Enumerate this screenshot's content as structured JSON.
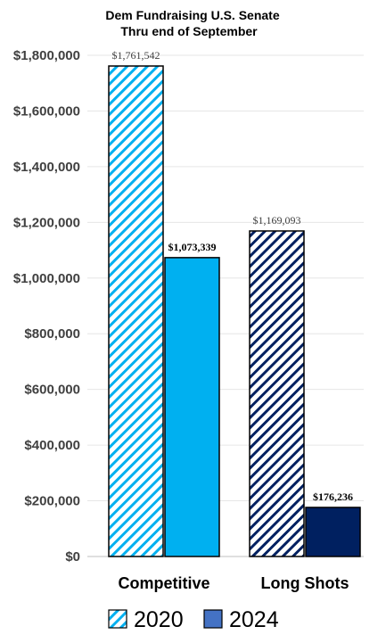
{
  "chart_data": {
    "type": "bar",
    "title": "Dem Fundraising U.S. Senate",
    "subtitle": "Thru end of September",
    "categories": [
      "Competitive",
      "Long Shots"
    ],
    "series": [
      {
        "name": "2020",
        "values": [
          1761542,
          1169093
        ],
        "labels": [
          "$1,761,542",
          "$1,169,093"
        ],
        "colors": [
          "#00b0f0",
          "#002060"
        ],
        "fill": "hatched"
      },
      {
        "name": "2024",
        "values": [
          1073339,
          176236
        ],
        "labels": [
          "$1,073,339",
          "$176,236"
        ],
        "colors": [
          "#00b0f0",
          "#002060"
        ],
        "fill": "solid"
      }
    ],
    "ylim": [
      0,
      1800000
    ],
    "yticks": [
      0,
      200000,
      400000,
      600000,
      800000,
      1000000,
      1200000,
      1400000,
      1600000,
      1800000
    ],
    "ytick_labels": [
      "$0",
      "$200,000",
      "$400,000",
      "$600,000",
      "$800,000",
      "$1,000,000",
      "$1,200,000",
      "$1,400,000",
      "$1,600,000",
      "$1,800,000"
    ],
    "grid": true,
    "legend_position": "bottom",
    "legend": [
      {
        "label": "2020",
        "color": "#00b0f0",
        "fill": "hatched"
      },
      {
        "label": "2024",
        "color": "#4472c4",
        "fill": "solid"
      }
    ]
  }
}
